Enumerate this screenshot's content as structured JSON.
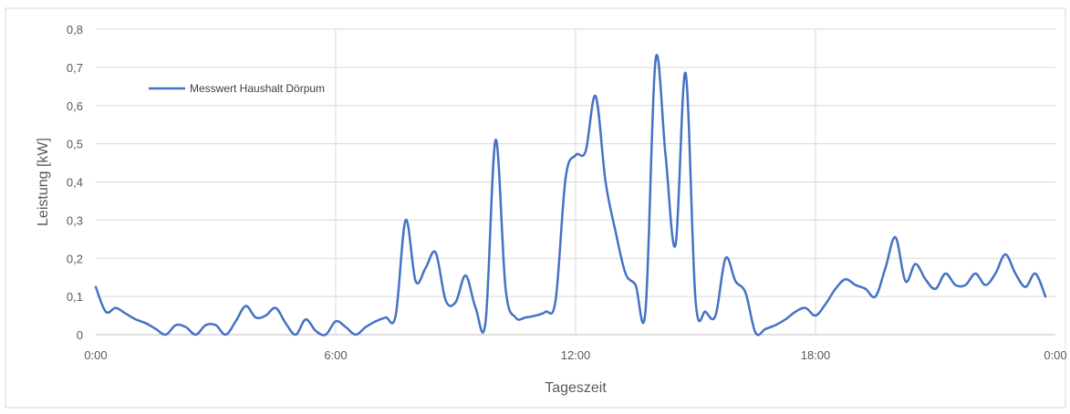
{
  "chart_data": {
    "type": "line",
    "title": "",
    "xlabel": "Tageszeit",
    "ylabel": "Leistung [kW]",
    "xlim": [
      0,
      24
    ],
    "ylim": [
      0,
      0.8
    ],
    "x_ticks": [
      {
        "value": 0,
        "label": "0:00"
      },
      {
        "value": 6,
        "label": "6:00"
      },
      {
        "value": 12,
        "label": "12:00"
      },
      {
        "value": 18,
        "label": "18:00"
      },
      {
        "value": 24,
        "label": "0:00"
      }
    ],
    "y_ticks": [
      {
        "value": 0,
        "label": "0"
      },
      {
        "value": 0.1,
        "label": "0,1"
      },
      {
        "value": 0.2,
        "label": "0,2"
      },
      {
        "value": 0.3,
        "label": "0,3"
      },
      {
        "value": 0.4,
        "label": "0,4"
      },
      {
        "value": 0.5,
        "label": "0,5"
      },
      {
        "value": 0.6,
        "label": "0,6"
      },
      {
        "value": 0.7,
        "label": "0,7"
      },
      {
        "value": 0.8,
        "label": "0,8"
      }
    ],
    "grid": {
      "horizontal": true,
      "vertical": true
    },
    "legend": {
      "position": "top-left"
    },
    "series": [
      {
        "name": "Messwert Haushalt Dörpum",
        "color": "#4472C4",
        "x": [
          0,
          0.25,
          0.5,
          0.75,
          1.0,
          1.25,
          1.5,
          1.75,
          2.0,
          2.25,
          2.5,
          2.75,
          3.0,
          3.25,
          3.5,
          3.75,
          4.0,
          4.25,
          4.5,
          4.75,
          5.0,
          5.25,
          5.5,
          5.75,
          6.0,
          6.25,
          6.5,
          6.75,
          7.0,
          7.25,
          7.5,
          7.75,
          8.0,
          8.25,
          8.5,
          8.75,
          9.0,
          9.25,
          9.5,
          9.75,
          10.0,
          10.25,
          10.5,
          10.75,
          11.0,
          11.25,
          11.5,
          11.75,
          12.0,
          12.25,
          12.5,
          12.75,
          13.0,
          13.25,
          13.5,
          13.75,
          14.0,
          14.25,
          14.5,
          14.75,
          15.0,
          15.25,
          15.5,
          15.75,
          16.0,
          16.25,
          16.5,
          16.75,
          17.0,
          17.25,
          17.5,
          17.75,
          18.0,
          18.25,
          18.5,
          18.75,
          19.0,
          19.25,
          19.5,
          19.75,
          20.0,
          20.25,
          20.5,
          20.75,
          21.0,
          21.25,
          21.5,
          21.75,
          22.0,
          22.25,
          22.5,
          22.75,
          23.0,
          23.25,
          23.5,
          23.75
        ],
        "values": [
          0.125,
          0.06,
          0.07,
          0.055,
          0.04,
          0.03,
          0.015,
          0.0,
          0.025,
          0.02,
          0.0,
          0.025,
          0.025,
          0.0,
          0.035,
          0.075,
          0.045,
          0.05,
          0.07,
          0.03,
          0.0,
          0.04,
          0.01,
          0.0,
          0.035,
          0.02,
          0.0,
          0.02,
          0.035,
          0.045,
          0.05,
          0.3,
          0.14,
          0.175,
          0.215,
          0.09,
          0.085,
          0.155,
          0.07,
          0.035,
          0.51,
          0.12,
          0.045,
          0.045,
          0.05,
          0.06,
          0.09,
          0.41,
          0.47,
          0.48,
          0.625,
          0.4,
          0.27,
          0.16,
          0.13,
          0.065,
          0.72,
          0.47,
          0.235,
          0.685,
          0.09,
          0.06,
          0.05,
          0.2,
          0.14,
          0.11,
          0.005,
          0.015,
          0.025,
          0.04,
          0.06,
          0.07,
          0.05,
          0.08,
          0.12,
          0.145,
          0.13,
          0.12,
          0.1,
          0.175,
          0.255,
          0.14,
          0.185,
          0.145,
          0.12,
          0.16,
          0.13,
          0.13,
          0.16,
          0.13,
          0.16,
          0.21,
          0.16,
          0.125,
          0.16,
          0.1
        ]
      }
    ]
  }
}
